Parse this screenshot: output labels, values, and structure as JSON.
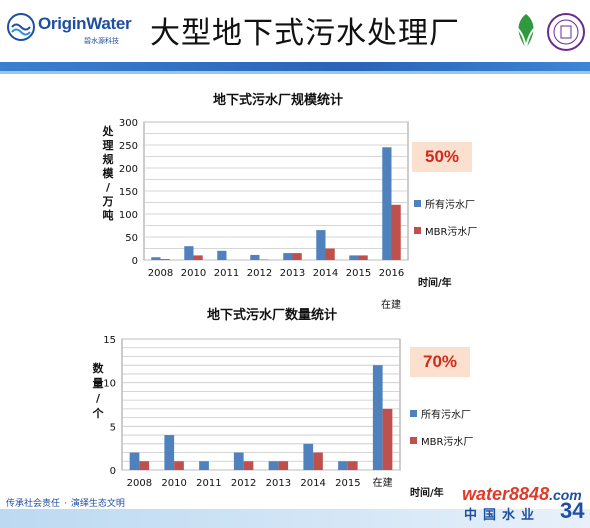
{
  "header": {
    "title": "大型地下式污水处理厂",
    "logo_brand": "OriginWater",
    "logo_sub": "碧水源科技"
  },
  "footer": {
    "slogan_1": "传承社会责任",
    "slogan_2": "演绎生态文明",
    "watermark_1": "water",
    "watermark_1b": "8848",
    "watermark_1c": ".com",
    "watermark_2": "中国水业",
    "page_number": "34"
  },
  "colors": {
    "series_all": "#4f81bd",
    "series_mbr": "#c0504d",
    "highlight_bg": "#fbe0cf",
    "highlight_text": "#d32a1a"
  },
  "chart_data": [
    {
      "type": "bar",
      "title": "地下式污水厂规模统计",
      "ylabel": "处理规模/万吨",
      "xlabel": "时间/年",
      "categories": [
        "2008",
        "2010",
        "2011",
        "2012",
        "2013",
        "2014",
        "2015",
        "2016"
      ],
      "ylim": [
        0,
        300
      ],
      "yticks": [
        0,
        50,
        100,
        150,
        200,
        250,
        300
      ],
      "grid": true,
      "legend_position": "right",
      "series": [
        {
          "name": "所有污水厂",
          "values": [
            6,
            30,
            20,
            11,
            15,
            65,
            10,
            245
          ]
        },
        {
          "name": "MBR污水厂",
          "values": [
            2,
            10,
            0,
            1,
            15,
            25,
            10,
            120
          ]
        }
      ],
      "annotation": "50%",
      "extra_label": "在建"
    },
    {
      "type": "bar",
      "title": "地下式污水厂数量统计",
      "ylabel": "数量/个",
      "xlabel": "时间/年",
      "categories": [
        "2008",
        "2010",
        "2011",
        "2012",
        "2013",
        "2014",
        "2015",
        "在建"
      ],
      "ylim": [
        0,
        15
      ],
      "yticks": [
        0,
        5,
        10,
        15
      ],
      "grid": true,
      "legend_position": "right",
      "series": [
        {
          "name": "所有污水厂",
          "values": [
            2,
            4,
            1,
            2,
            1,
            3,
            1,
            12
          ]
        },
        {
          "name": "MBR污水厂",
          "values": [
            1,
            1,
            0,
            1,
            1,
            2,
            1,
            7
          ]
        }
      ],
      "annotation": "70%"
    }
  ]
}
